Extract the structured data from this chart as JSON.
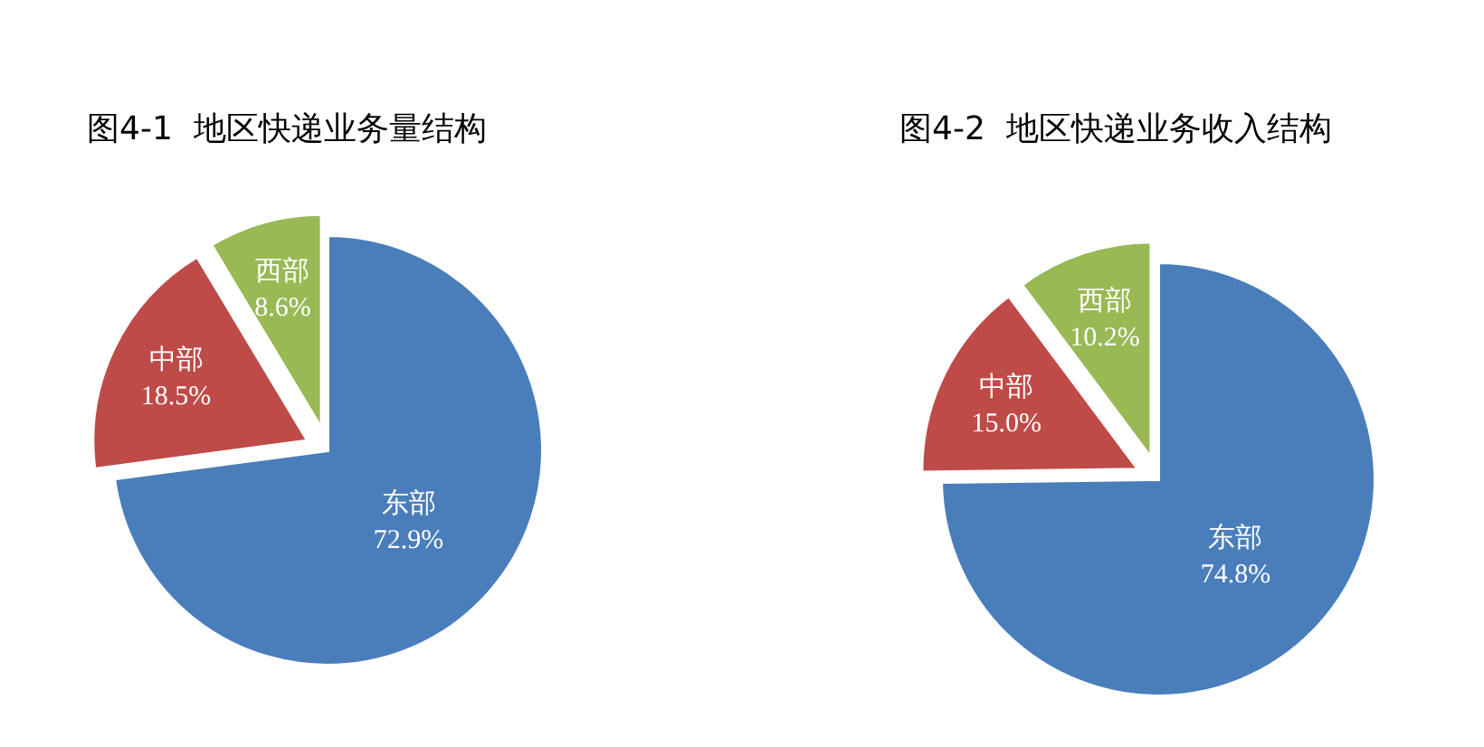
{
  "chart_data": [
    {
      "type": "pie",
      "title": "图4-1  地区快递业务量结构",
      "categories": [
        "东部",
        "中部",
        "西部"
      ],
      "values": [
        72.9,
        18.5,
        8.6
      ],
      "colors": [
        "#4a7ebb",
        "#be4b48",
        "#98b954"
      ],
      "value_labels": [
        "72.9%",
        "18.5%",
        "8.6%"
      ]
    },
    {
      "type": "pie",
      "title": "图4-2  地区快递业务收入结构",
      "categories": [
        "东部",
        "中部",
        "西部"
      ],
      "values": [
        74.8,
        15.0,
        10.2
      ],
      "colors": [
        "#4a7ebb",
        "#be4b48",
        "#98b954"
      ],
      "value_labels": [
        "74.8%",
        "15.0%",
        "10.2%"
      ]
    }
  ]
}
